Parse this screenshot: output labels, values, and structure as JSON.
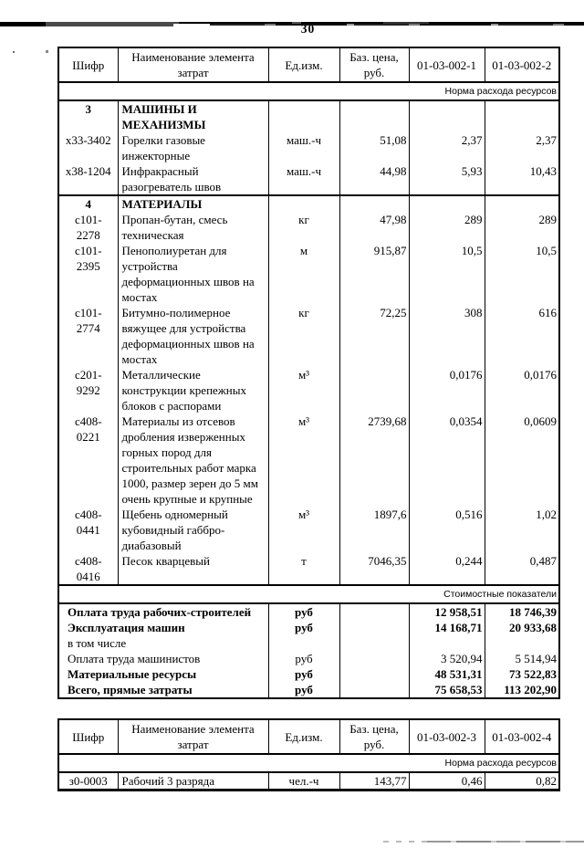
{
  "page": {
    "number": "30"
  },
  "table1": {
    "headers": [
      "Шифр",
      "Наименование элемента затрат",
      "Ед.изм.",
      "Баз. цена, руб.",
      "01-03-002-1",
      "01-03-002-2"
    ],
    "norm_band": "Норма расхода ресурсов",
    "resource_rows": [
      {
        "code": "3",
        "name": "МАШИНЫ И МЕХАНИЗМЫ",
        "unit": "",
        "base_price": "",
        "v1": "",
        "v2": "",
        "section": true
      },
      {
        "code": "х33-3402",
        "name": "Горелки газовые инжекторные",
        "unit": "маш.-ч",
        "base_price": "51,08",
        "v1": "2,37",
        "v2": "2,37"
      },
      {
        "code": "х38-1204",
        "name": "Инфракрасный разогреватель швов",
        "unit": "маш.-ч",
        "base_price": "44,98",
        "v1": "5,93",
        "v2": "10,43"
      },
      {
        "code": "4",
        "name": "МАТЕРИАЛЫ",
        "unit": "",
        "base_price": "",
        "v1": "",
        "v2": "",
        "section": true,
        "rule_top": true
      },
      {
        "code": "с101-2278",
        "name": "Пропан-бутан, смесь техническая",
        "unit": "кг",
        "base_price": "47,98",
        "v1": "289",
        "v2": "289"
      },
      {
        "code": "с101-2395",
        "name": "Пенополиуретан для устройства деформационных швов на мостах",
        "unit": "м",
        "base_price": "915,87",
        "v1": "10,5",
        "v2": "10,5"
      },
      {
        "code": "с101-2774",
        "name": "Битумно-полимерное вяжущее для устройства деформационных швов на мостах",
        "unit": "кг",
        "base_price": "72,25",
        "v1": "308",
        "v2": "616"
      },
      {
        "code": "с201-9292",
        "name": "Металлические конструкции крепежных блоков с распорами",
        "unit": "м³",
        "base_price": "",
        "v1": "0,0176",
        "v2": "0,0176"
      },
      {
        "code": "с408-0221",
        "name": "Материалы из отсевов дробления изверженных горных пород для строительных работ марка 1000, размер зерен до 5 мм очень крупные и крупные",
        "unit": "м³",
        "base_price": "2739,68",
        "v1": "0,0354",
        "v2": "0,0609"
      },
      {
        "code": "с408-0441",
        "name": "Щебень одномерный кубовидный габбро-диабазовый",
        "unit": "м³",
        "base_price": "1897,6",
        "v1": "0,516",
        "v2": "1,02"
      },
      {
        "code": "с408-0416",
        "name": "Песок кварцевый",
        "unit": "т",
        "base_price": "7046,35",
        "v1": "0,244",
        "v2": "0,487"
      }
    ],
    "cost_band": "Стоимостные показатели",
    "cost_rows": [
      {
        "name": "Оплата труда рабочих-строителей",
        "unit": "руб",
        "v1": "12 958,51",
        "v2": "18 746,39",
        "bold": true
      },
      {
        "name": "Эксплуатация машин",
        "unit": "руб",
        "v1": "14 168,71",
        "v2": "20 933,68",
        "bold": true
      },
      {
        "name": "в том числе",
        "unit": "",
        "v1": "",
        "v2": "",
        "bold": false
      },
      {
        "name": "Оплата труда машинистов",
        "unit": "руб",
        "v1": "3 520,94",
        "v2": "5 514,94",
        "bold": false
      },
      {
        "name": "Материальные ресурсы",
        "unit": "руб",
        "v1": "48 531,31",
        "v2": "73 522,83",
        "bold": true
      },
      {
        "name": "Всего, прямые затраты",
        "unit": "руб",
        "v1": "75 658,53",
        "v2": "113 202,90",
        "bold": true
      }
    ]
  },
  "table2": {
    "headers": [
      "Шифр",
      "Наименование элемента затрат",
      "Ед.изм.",
      "Баз. цена, руб.",
      "01-03-002-3",
      "01-03-002-4"
    ],
    "norm_band": "Норма расхода ресурсов",
    "resource_rows": [
      {
        "code": "з0-0003",
        "name": "Рабочий 3 разряда",
        "unit": "чел.-ч",
        "base_price": "143,77",
        "v1": "0,46",
        "v2": "0,82"
      }
    ]
  }
}
